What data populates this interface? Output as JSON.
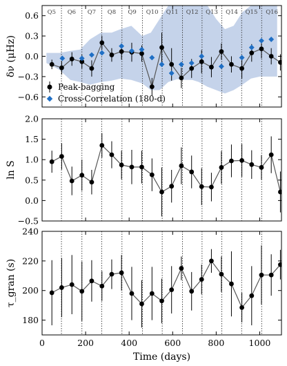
{
  "figure": {
    "xlabel": "Time (days)",
    "x_ticks": [
      0,
      200,
      400,
      600,
      800,
      1000
    ],
    "xlim": [
      0,
      1100
    ],
    "quarter_boundaries": [
      89,
      183,
      274,
      367,
      461,
      552,
      645,
      735,
      826,
      917,
      1009
    ],
    "quarter_labels": [
      {
        "text": "Q5",
        "x": 44
      },
      {
        "text": "Q6",
        "x": 136
      },
      {
        "text": "Q7",
        "x": 228
      },
      {
        "text": "Q8",
        "x": 320
      },
      {
        "text": "Q9",
        "x": 414
      },
      {
        "text": "Q10",
        "x": 506
      },
      {
        "text": "Q11",
        "x": 598
      },
      {
        "text": "Q12",
        "x": 690
      },
      {
        "text": "Q13",
        "x": 780
      },
      {
        "text": "Q14",
        "x": 872
      },
      {
        "text": "Q15",
        "x": 962
      },
      {
        "text": "Q16",
        "x": 1056
      }
    ]
  },
  "chart_data": [
    {
      "type": "line",
      "panel": "top",
      "ylabel": "δν (μHz)",
      "ylim": [
        -0.75,
        0.75
      ],
      "y_ticks": [
        -0.6,
        -0.3,
        0.0,
        0.3,
        0.6
      ],
      "y_tick_labels": [
        "−0.6",
        "−0.3",
        "0.0",
        "0.3",
        "0.6"
      ],
      "band": {
        "x": [
          20,
          80,
          130,
          175,
          220,
          270,
          320,
          360,
          410,
          460,
          500,
          540,
          580,
          620,
          650,
          690,
          720,
          760,
          800,
          840,
          880,
          920,
          960,
          1000,
          1040,
          1080
        ],
        "upper": [
          0.05,
          0.05,
          0.08,
          0.1,
          0.25,
          0.35,
          0.35,
          0.4,
          0.45,
          0.3,
          0.35,
          0.55,
          0.75,
          0.75,
          0.75,
          0.75,
          0.75,
          0.75,
          0.55,
          0.4,
          0.45,
          0.65,
          0.75,
          0.75,
          0.75,
          0.75
        ],
        "lower": [
          -0.1,
          -0.2,
          -0.35,
          -0.38,
          -0.42,
          -0.38,
          -0.36,
          -0.33,
          -0.35,
          -0.4,
          -0.5,
          -0.5,
          -0.38,
          -0.34,
          -0.35,
          -0.35,
          -0.38,
          -0.45,
          -0.5,
          -0.55,
          -0.5,
          -0.42,
          -0.33,
          -0.3,
          -0.3,
          -0.3
        ]
      },
      "series": [
        {
          "name": "Peak-bagging",
          "marker": "circle",
          "color": "#000000",
          "line_color": "#555555",
          "x": [
            45,
            90,
            137,
            183,
            228,
            275,
            320,
            365,
            412,
            458,
            505,
            550,
            595,
            640,
            687,
            733,
            778,
            824,
            870,
            918,
            963,
            1008,
            1053,
            1095
          ],
          "y": [
            -0.12,
            -0.17,
            -0.04,
            -0.08,
            -0.18,
            0.2,
            0.02,
            0.07,
            0.06,
            0.04,
            -0.45,
            0.13,
            -0.12,
            -0.32,
            -0.18,
            -0.08,
            -0.16,
            0.07,
            -0.12,
            -0.18,
            0.05,
            0.11,
            0.0,
            -0.09
          ],
          "err": [
            0.07,
            0.1,
            0.1,
            0.1,
            0.12,
            0.1,
            0.1,
            0.12,
            0.14,
            0.12,
            0.13,
            0.22,
            0.24,
            0.15,
            0.14,
            0.17,
            0.15,
            0.12,
            0.12,
            0.15,
            0.13,
            0.14,
            0.12,
            0.12
          ]
        },
        {
          "name": "Cross-Correlation (180-d)",
          "marker": "diamond",
          "color": "#1f6fc5",
          "x": [
            93,
            183,
            228,
            275,
            365,
            412,
            458,
            505,
            550,
            595,
            640,
            687,
            733,
            824,
            918,
            963,
            1008,
            1053
          ],
          "y": [
            -0.03,
            -0.03,
            0.02,
            0.05,
            0.15,
            0.08,
            0.1,
            -0.02,
            -0.12,
            -0.25,
            -0.12,
            -0.1,
            0.0,
            -0.15,
            -0.02,
            0.13,
            0.23,
            0.25
          ]
        }
      ],
      "legend_position": "lower-left"
    },
    {
      "type": "line",
      "panel": "middle",
      "ylabel": "ln S",
      "ylim": [
        -0.5,
        2.0
      ],
      "y_ticks": [
        -0.5,
        0.0,
        0.5,
        1.0,
        1.5,
        2.0
      ],
      "y_tick_labels": [
        "−0.5",
        "0.0",
        "0.5",
        "1.0",
        "1.5",
        "2.0"
      ],
      "series": [
        {
          "name": "",
          "marker": "circle",
          "color": "#000000",
          "line_color": "#555555",
          "x": [
            45,
            90,
            137,
            183,
            228,
            275,
            320,
            365,
            412,
            458,
            505,
            550,
            595,
            640,
            687,
            733,
            778,
            824,
            870,
            918,
            963,
            1008,
            1053,
            1095
          ],
          "y": [
            0.95,
            1.08,
            0.48,
            0.62,
            0.45,
            1.35,
            1.12,
            0.87,
            0.82,
            0.82,
            0.63,
            0.21,
            0.35,
            0.85,
            0.7,
            0.34,
            0.33,
            0.81,
            0.97,
            0.98,
            0.88,
            0.81,
            1.12,
            0.21
          ],
          "err": [
            0.27,
            0.32,
            0.35,
            0.38,
            0.3,
            0.3,
            0.33,
            0.35,
            0.42,
            0.4,
            0.4,
            0.6,
            0.4,
            0.45,
            0.4,
            0.45,
            0.35,
            0.4,
            0.4,
            0.4,
            0.35,
            0.3,
            0.45,
            0.5
          ]
        }
      ]
    },
    {
      "type": "line",
      "panel": "bottom",
      "ylabel": "τ_gran (s)",
      "ylim": [
        170,
        240
      ],
      "y_ticks": [
        180,
        200,
        220,
        240
      ],
      "y_tick_labels": [
        "180",
        "200",
        "220",
        "240"
      ],
      "series": [
        {
          "name": "",
          "marker": "circle",
          "color": "#000000",
          "line_color": "#555555",
          "x": [
            45,
            90,
            137,
            183,
            228,
            275,
            320,
            365,
            412,
            458,
            505,
            550,
            595,
            640,
            687,
            733,
            778,
            824,
            870,
            918,
            963,
            1008,
            1053,
            1095
          ],
          "y": [
            198.5,
            202,
            204,
            199.5,
            206.5,
            203,
            211,
            212,
            198,
            191,
            198,
            193,
            200.5,
            215,
            199.5,
            207.5,
            220,
            211,
            204.5,
            188.5,
            196.5,
            210.5,
            210.5,
            217.5
          ],
          "err": [
            22,
            20,
            20,
            20,
            14,
            10,
            10,
            12,
            18,
            16,
            18,
            15,
            16,
            8,
            13,
            10,
            8,
            12,
            22,
            10,
            20,
            20,
            14,
            10
          ]
        }
      ]
    }
  ]
}
